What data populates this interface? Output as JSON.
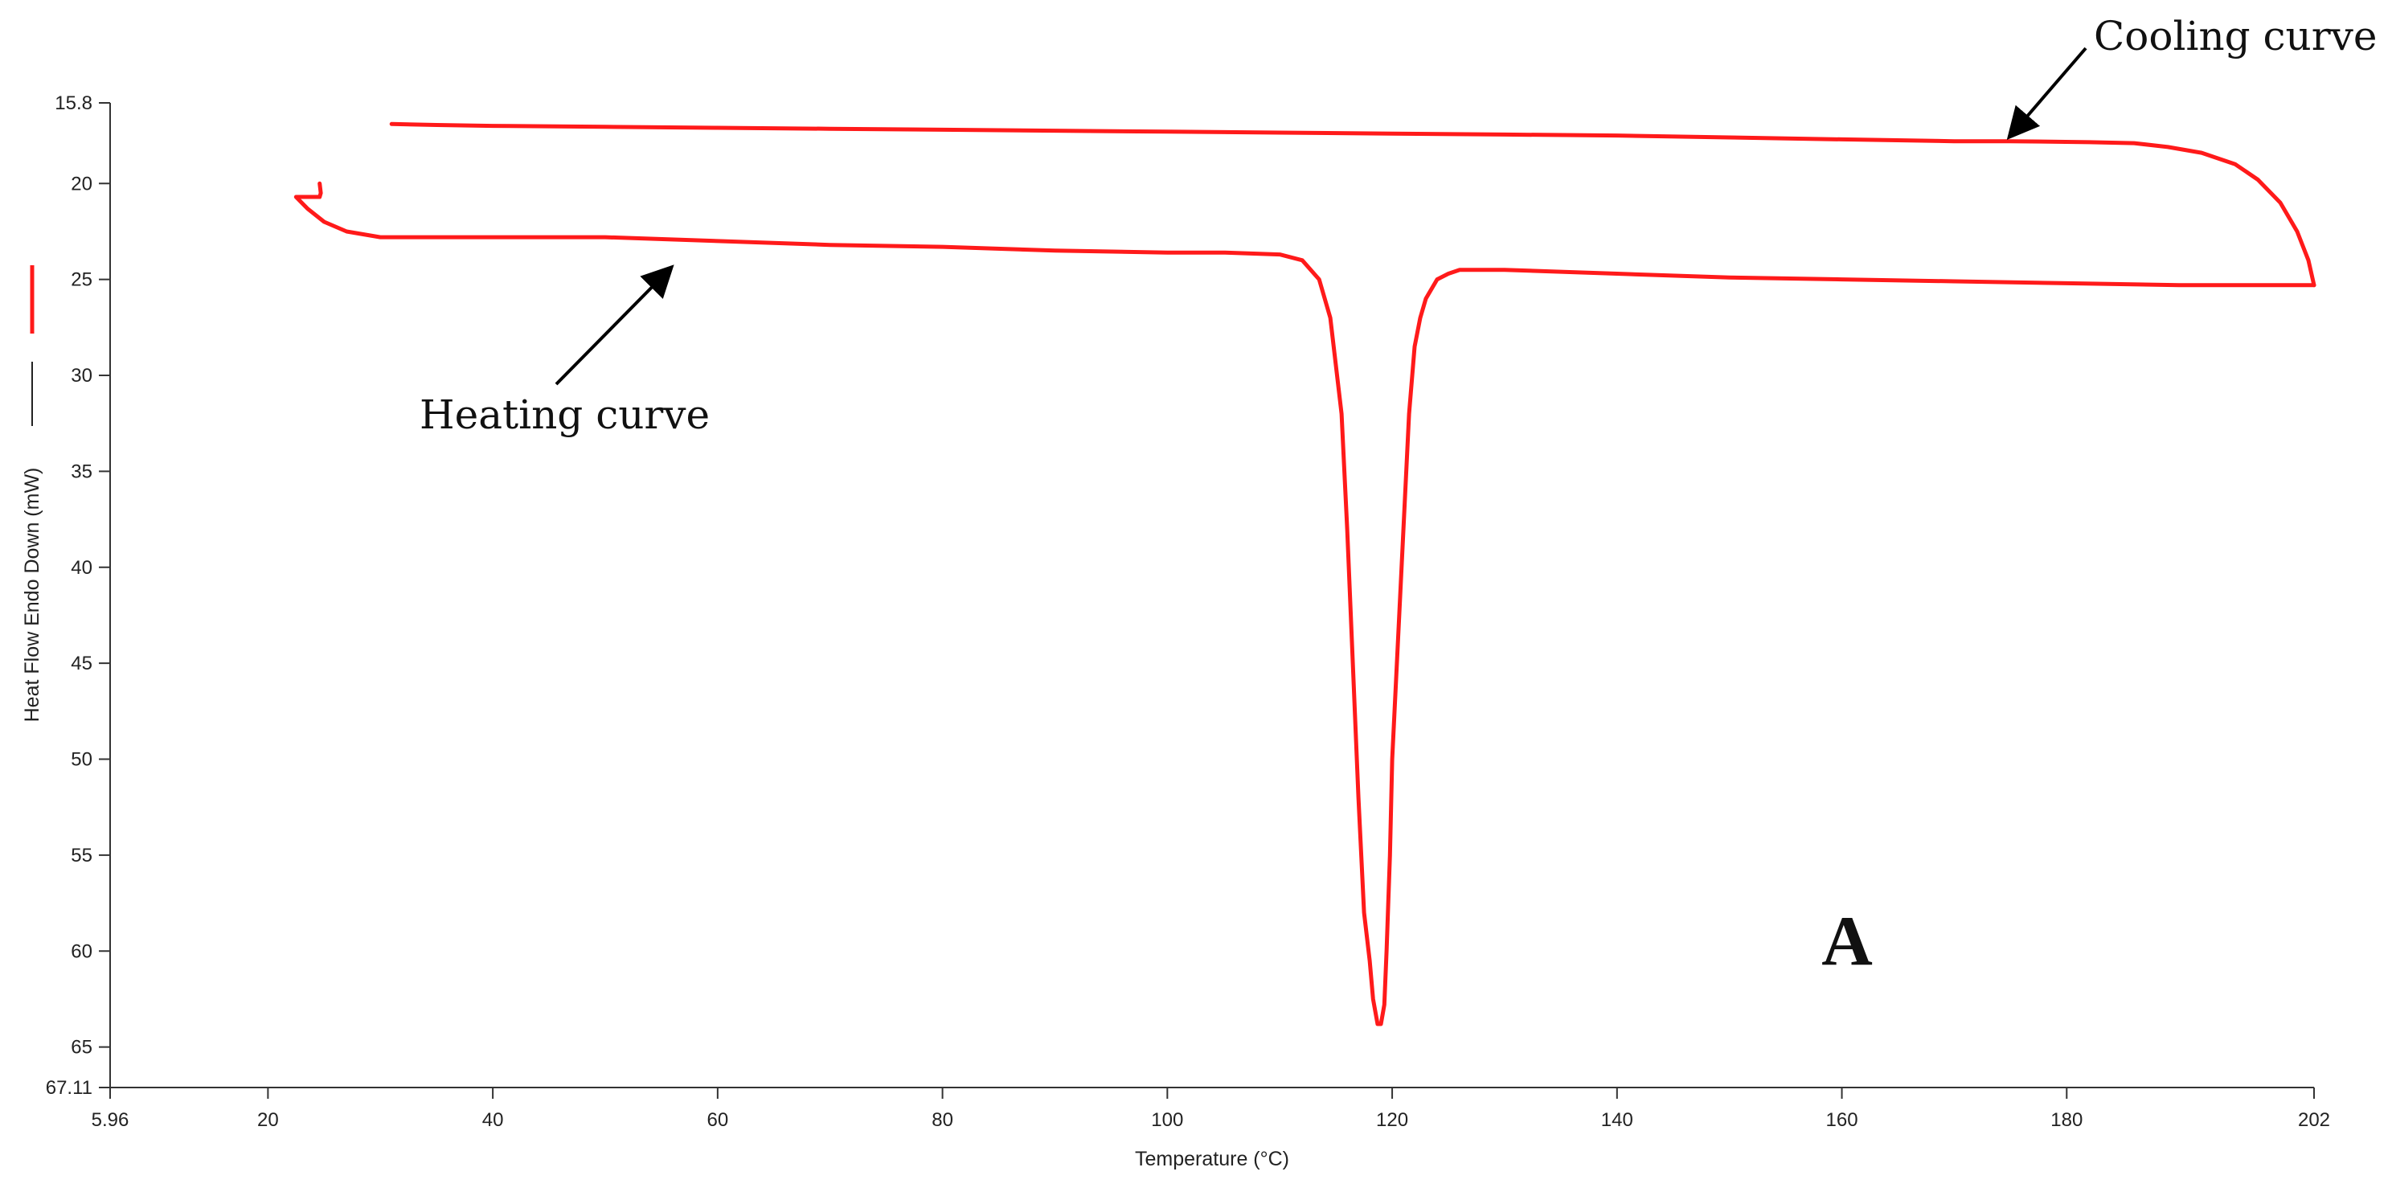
{
  "chart_data": {
    "type": "line",
    "xlabel": "Temperature (°C)",
    "ylabel": "Heat Flow Endo Down (mW)",
    "xlim": [
      5.96,
      202
    ],
    "ylim": [
      67.11,
      15.8
    ],
    "y_axis_inverted": true,
    "grid": false,
    "x_ticks": [
      {
        "value": 5.96,
        "label": "5.96"
      },
      {
        "value": 20,
        "label": "20"
      },
      {
        "value": 40,
        "label": "40"
      },
      {
        "value": 60,
        "label": "60"
      },
      {
        "value": 80,
        "label": "80"
      },
      {
        "value": 100,
        "label": "100"
      },
      {
        "value": 120,
        "label": "120"
      },
      {
        "value": 140,
        "label": "140"
      },
      {
        "value": 160,
        "label": "160"
      },
      {
        "value": 180,
        "label": "180"
      },
      {
        "value": 202,
        "label": "202"
      }
    ],
    "y_ticks": [
      {
        "value": 15.8,
        "label": "15.8"
      },
      {
        "value": 20,
        "label": "20"
      },
      {
        "value": 25,
        "label": "25"
      },
      {
        "value": 30,
        "label": "30"
      },
      {
        "value": 35,
        "label": "35"
      },
      {
        "value": 40,
        "label": "40"
      },
      {
        "value": 45,
        "label": "45"
      },
      {
        "value": 50,
        "label": "50"
      },
      {
        "value": 55,
        "label": "55"
      },
      {
        "value": 60,
        "label": "60"
      },
      {
        "value": 65,
        "label": "65"
      },
      {
        "value": 67.11,
        "label": "67.11"
      }
    ],
    "series_color": "#ff1a1a",
    "series": [
      {
        "x": [
          24.6,
          24.7,
          24.6,
          22.5,
          23.5,
          25.0,
          27.0,
          30.0,
          35.0,
          40.0,
          50.0,
          60.0,
          70.0,
          80.0,
          90.0,
          100.0,
          105.0,
          110.0,
          112.0,
          113.5,
          114.5,
          115.5,
          116.0,
          116.5,
          117.0,
          117.5,
          118.0,
          118.3,
          118.7,
          119.0,
          119.3,
          119.5,
          119.8,
          120.0,
          120.5,
          121.0,
          121.5,
          122.0,
          122.5,
          123.0,
          124.0,
          125.0,
          126.0,
          127.0,
          130.0,
          140.0,
          150.0,
          160.0,
          170.0,
          180.0,
          190.0,
          200.0,
          202.0
        ],
        "y": [
          20.0,
          20.5,
          20.7,
          20.7,
          21.3,
          22.0,
          22.5,
          22.8,
          22.8,
          22.8,
          22.8,
          23.0,
          23.2,
          23.3,
          23.5,
          23.6,
          23.6,
          23.7,
          24.0,
          25.0,
          27.0,
          32.0,
          38.0,
          45.0,
          52.0,
          58.0,
          60.5,
          62.5,
          63.8,
          63.8,
          62.8,
          60.0,
          55.0,
          50.0,
          44.0,
          38.0,
          32.0,
          28.5,
          27.0,
          26.0,
          25.0,
          24.7,
          24.5,
          24.5,
          24.5,
          24.7,
          24.9,
          25.0,
          25.1,
          25.2,
          25.3,
          25.3,
          25.3
        ]
      },
      {
        "x": [
          202.0,
          201.5,
          200.5,
          199.0,
          197.0,
          195.0,
          192.0,
          189.0,
          186.0,
          182.0,
          175.0,
          170.0,
          160.0,
          150.0,
          140.0,
          130.0,
          120.0,
          110.0,
          100.0,
          90.0,
          80.0,
          70.0,
          60.0,
          50.0,
          40.0,
          35.0,
          31.0
        ],
        "y": [
          25.3,
          24.0,
          22.5,
          21.0,
          19.8,
          19.0,
          18.4,
          18.1,
          17.9,
          17.85,
          17.8,
          17.8,
          17.7,
          17.6,
          17.5,
          17.45,
          17.4,
          17.35,
          17.3,
          17.25,
          17.2,
          17.15,
          17.1,
          17.05,
          17.0,
          16.95,
          16.9
        ]
      }
    ],
    "annotations": [
      {
        "text": "Cooling curve",
        "target_x": 174,
        "target_y": 17.8
      },
      {
        "text": "Heating curve",
        "target_x": 57,
        "target_y": 22.8
      }
    ],
    "panel_label": "A"
  }
}
